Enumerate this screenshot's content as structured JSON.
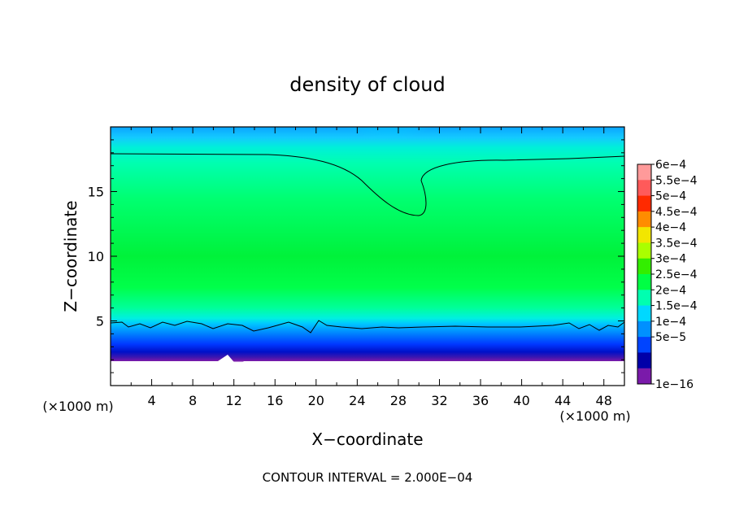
{
  "chart_data": {
    "type": "heatmap",
    "title": "density of cloud",
    "xlabel": "X−coordinate",
    "ylabel": "Z−coordinate",
    "x_unit_left": "(×1000 m)",
    "x_unit_right": "(×1000 m)",
    "xlim": [
      0,
      50
    ],
    "ylim": [
      0,
      20
    ],
    "x_ticks": [
      4,
      8,
      12,
      16,
      20,
      24,
      28,
      32,
      36,
      40,
      44,
      48
    ],
    "y_ticks": [
      5,
      10,
      15
    ],
    "footer": "CONTOUR INTERVAL = 2.000E−04",
    "colorbar": {
      "labels": [
        "6e−4",
        "5.5e−4",
        "5e−4",
        "4.5e−4",
        "4e−4",
        "3.5e−4",
        "3e−4",
        "2.5e−4",
        "2e−4",
        "1.5e−4",
        "1e−4",
        "5e−5",
        "1e−16"
      ],
      "colors": [
        "#ff9a9a",
        "#ff5a5a",
        "#ff2a00",
        "#ff8c00",
        "#f2e600",
        "#aaff00",
        "#33ee00",
        "#00ff44",
        "#00ffb0",
        "#00d8ff",
        "#0090ff",
        "#0044ff",
        "#0000a8",
        "#7a1aaa"
      ]
    },
    "description_values": {
      "dominant_level": 0.00025,
      "contour_level": 0.0002,
      "upper_contour_z_range": [
        13,
        17.8
      ],
      "lower_contour_z": 4.7,
      "cloud_base_z": 1.6,
      "min_dip_x": 30
    }
  }
}
